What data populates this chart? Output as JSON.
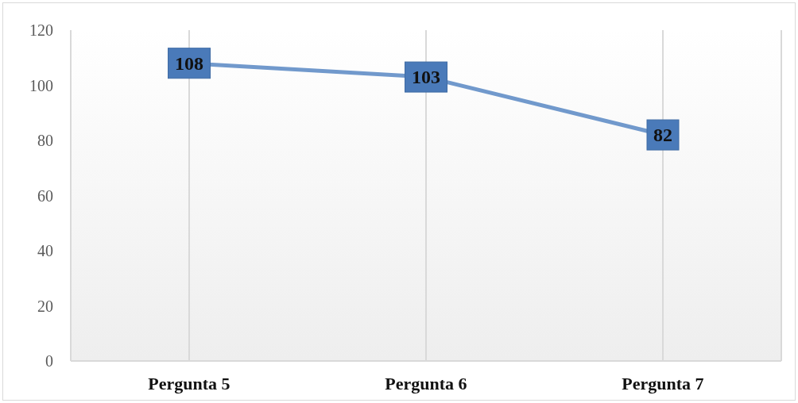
{
  "chart_data": {
    "type": "line",
    "categories": [
      "Pergunta 5",
      "Pergunta 6",
      "Pergunta 7"
    ],
    "series": [
      {
        "color": "#7199cc",
        "values": [
          108,
          103,
          82
        ]
      }
    ],
    "ylim": [
      0,
      120
    ],
    "yticks": [
      0,
      20,
      40,
      60,
      80,
      100,
      120
    ],
    "grid": "x",
    "data_labels": true,
    "line_style": "solid",
    "legend": false
  }
}
